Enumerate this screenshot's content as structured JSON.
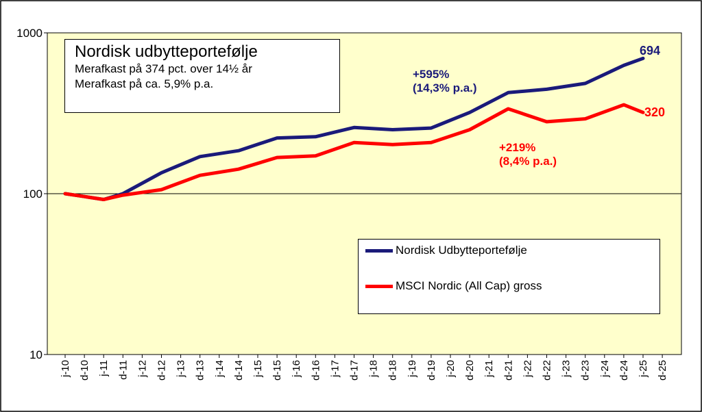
{
  "chart_data": {
    "type": "line",
    "title": "Nordisk udbytteportefølje",
    "subtitle_lines": [
      "Merafkast på 374 pct. over 14½ år",
      "Merafkast på ca. 5,9% p.a."
    ],
    "y_scale": "log",
    "ylim": [
      10,
      1000
    ],
    "y_ticks": [
      "10",
      "100",
      "1000"
    ],
    "categories": [
      "j-10",
      "d-10",
      "j-11",
      "d-11",
      "j-12",
      "d-12",
      "j-13",
      "d-13",
      "j-14",
      "d-14",
      "j-15",
      "d-15",
      "j-16",
      "d-16",
      "j-17",
      "d-17",
      "j-18",
      "d-18",
      "j-19",
      "d-19",
      "j-20",
      "d-20",
      "j-21",
      "d-21",
      "j-22",
      "d-22",
      "j-23",
      "d-23",
      "j-24",
      "d-24",
      "j-25",
      "d-25"
    ],
    "series": [
      {
        "name": "Nordisk Udbytteportefølje",
        "color": "#1a1a7a",
        "x": [
          "j-10",
          "d-10",
          "j-11",
          "d-11",
          "d-12",
          "d-13",
          "d-14",
          "d-15",
          "d-16",
          "d-17",
          "d-18",
          "d-19",
          "d-20",
          "d-21",
          "d-22",
          "d-23",
          "d-24",
          "j-25"
        ],
        "values": [
          100,
          96,
          92,
          100,
          135,
          170,
          185,
          222,
          226,
          258,
          250,
          256,
          320,
          425,
          446,
          485,
          628,
          694
        ],
        "end_label": "694"
      },
      {
        "name": "MSCI Nordic (All Cap) gross",
        "color": "#ff0000",
        "x": [
          "j-10",
          "d-10",
          "j-11",
          "d-11",
          "d-12",
          "d-13",
          "d-14",
          "d-15",
          "d-16",
          "d-17",
          "d-18",
          "d-19",
          "d-20",
          "d-21",
          "d-22",
          "d-23",
          "d-24",
          "j-25"
        ],
        "values": [
          100,
          96,
          92,
          98,
          106,
          130,
          142,
          168,
          172,
          208,
          202,
          208,
          250,
          337,
          280,
          292,
          357,
          320
        ],
        "end_label": "320"
      }
    ],
    "annotations": [
      {
        "series": "Nordisk Udbytteportefølje",
        "lines": [
          "+595%",
          "(14,3% p.a.)"
        ],
        "color": "#1a1a7a"
      },
      {
        "series": "MSCI Nordic (All Cap) gross",
        "lines": [
          "+219%",
          "(8,4% p.a.)"
        ],
        "color": "#ff0000"
      }
    ],
    "grid": false,
    "reference_line": 100,
    "legend_placement": "bottom-right",
    "plot_background": "#ffffcc"
  }
}
